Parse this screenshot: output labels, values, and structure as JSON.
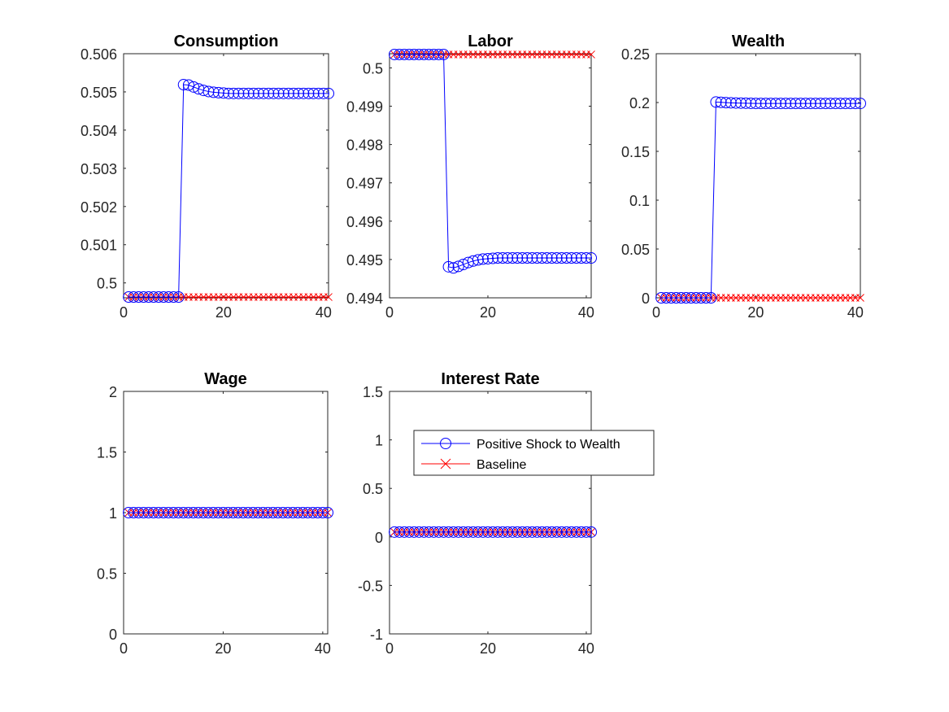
{
  "figure": {
    "series_styles": {
      "shock": {
        "color": "#0000ff",
        "marker": "circle"
      },
      "baseline": {
        "color": "#ff0000",
        "marker": "x"
      }
    },
    "legend": {
      "entries": [
        "Positive Shock to Wealth",
        "Baseline"
      ]
    }
  },
  "chart_data": [
    {
      "type": "line",
      "title": "Consumption",
      "xlim": [
        0,
        41
      ],
      "ylim": [
        0.49961,
        0.506
      ],
      "xticks": [
        0,
        20,
        40
      ],
      "xtick_labels": [
        "0",
        "20",
        "40"
      ],
      "yticks": [
        0.5,
        0.501,
        0.502,
        0.503,
        0.504,
        0.505,
        0.506
      ],
      "ytick_labels": [
        "0.5",
        "0.501",
        "0.502",
        "0.503",
        "0.504",
        "0.505",
        "0.506"
      ],
      "x": [
        1,
        2,
        3,
        4,
        5,
        6,
        7,
        8,
        9,
        10,
        11,
        12,
        13,
        14,
        15,
        16,
        17,
        18,
        19,
        20,
        21,
        22,
        23,
        24,
        25,
        26,
        27,
        28,
        29,
        30,
        31,
        32,
        33,
        34,
        35,
        36,
        37,
        38,
        39,
        40,
        41
      ],
      "series": [
        {
          "name": "Positive Shock to Wealth",
          "style": "shock",
          "values": [
            0.49963,
            0.49963,
            0.49963,
            0.49963,
            0.49963,
            0.49963,
            0.49963,
            0.49963,
            0.49963,
            0.49963,
            0.49963,
            0.50519,
            0.50518,
            0.50513,
            0.50508,
            0.50504,
            0.50501,
            0.50499,
            0.50498,
            0.50497,
            0.50496,
            0.50496,
            0.50496,
            0.50496,
            0.50496,
            0.50496,
            0.50496,
            0.50496,
            0.50496,
            0.50496,
            0.50496,
            0.50496,
            0.50496,
            0.50496,
            0.50496,
            0.50496,
            0.50496,
            0.50496,
            0.50496,
            0.50496,
            0.50496
          ]
        },
        {
          "name": "Baseline",
          "style": "baseline",
          "values": [
            0.49963,
            0.49963,
            0.49963,
            0.49963,
            0.49963,
            0.49963,
            0.49963,
            0.49963,
            0.49963,
            0.49963,
            0.49963,
            0.49963,
            0.49963,
            0.49963,
            0.49963,
            0.49963,
            0.49963,
            0.49963,
            0.49963,
            0.49963,
            0.49963,
            0.49963,
            0.49963,
            0.49963,
            0.49963,
            0.49963,
            0.49963,
            0.49963,
            0.49963,
            0.49963,
            0.49963,
            0.49963,
            0.49963,
            0.49963,
            0.49963,
            0.49963,
            0.49963,
            0.49963,
            0.49963,
            0.49963,
            0.49963
          ]
        }
      ]
    },
    {
      "type": "line",
      "title": "Labor",
      "xlim": [
        0,
        41
      ],
      "ylim": [
        0.494,
        0.50037
      ],
      "xticks": [
        0,
        20,
        40
      ],
      "xtick_labels": [
        "0",
        "20",
        "40"
      ],
      "yticks": [
        0.494,
        0.495,
        0.496,
        0.497,
        0.498,
        0.499,
        0.5
      ],
      "ytick_labels": [
        "0.494",
        "0.495",
        "0.496",
        "0.497",
        "0.498",
        "0.499",
        "0.5"
      ],
      "x": [
        1,
        2,
        3,
        4,
        5,
        6,
        7,
        8,
        9,
        10,
        11,
        12,
        13,
        14,
        15,
        16,
        17,
        18,
        19,
        20,
        21,
        22,
        23,
        24,
        25,
        26,
        27,
        28,
        29,
        30,
        31,
        32,
        33,
        34,
        35,
        36,
        37,
        38,
        39,
        40,
        41
      ],
      "series": [
        {
          "name": "Positive Shock to Wealth",
          "style": "shock",
          "values": [
            0.50035,
            0.50035,
            0.50035,
            0.50035,
            0.50035,
            0.50035,
            0.50035,
            0.50035,
            0.50035,
            0.50035,
            0.50035,
            0.49481,
            0.49478,
            0.49482,
            0.49487,
            0.49492,
            0.49496,
            0.49499,
            0.49501,
            0.49502,
            0.49503,
            0.49504,
            0.49504,
            0.49504,
            0.49504,
            0.49504,
            0.49504,
            0.49504,
            0.49504,
            0.49504,
            0.49504,
            0.49504,
            0.49504,
            0.49504,
            0.49504,
            0.49504,
            0.49504,
            0.49504,
            0.49504,
            0.49504,
            0.49504
          ]
        },
        {
          "name": "Baseline",
          "style": "baseline",
          "values": [
            0.50035,
            0.50035,
            0.50035,
            0.50035,
            0.50035,
            0.50035,
            0.50035,
            0.50035,
            0.50035,
            0.50035,
            0.50035,
            0.50035,
            0.50035,
            0.50035,
            0.50035,
            0.50035,
            0.50035,
            0.50035,
            0.50035,
            0.50035,
            0.50035,
            0.50035,
            0.50035,
            0.50035,
            0.50035,
            0.50035,
            0.50035,
            0.50035,
            0.50035,
            0.50035,
            0.50035,
            0.50035,
            0.50035,
            0.50035,
            0.50035,
            0.50035,
            0.50035,
            0.50035,
            0.50035,
            0.50035,
            0.50035
          ]
        }
      ]
    },
    {
      "type": "line",
      "title": "Wealth",
      "xlim": [
        0,
        41
      ],
      "ylim": [
        0,
        0.25
      ],
      "xticks": [
        0,
        20,
        40
      ],
      "xtick_labels": [
        "0",
        "20",
        "40"
      ],
      "yticks": [
        0,
        0.05,
        0.1,
        0.15,
        0.2,
        0.25
      ],
      "ytick_labels": [
        "0",
        "0.05",
        "0.1",
        "0.15",
        "0.2",
        "0.25"
      ],
      "x": [
        1,
        2,
        3,
        4,
        5,
        6,
        7,
        8,
        9,
        10,
        11,
        12,
        13,
        14,
        15,
        16,
        17,
        18,
        19,
        20,
        21,
        22,
        23,
        24,
        25,
        26,
        27,
        28,
        29,
        30,
        31,
        32,
        33,
        34,
        35,
        36,
        37,
        38,
        39,
        40,
        41
      ],
      "series": [
        {
          "name": "Positive Shock to Wealth",
          "style": "shock",
          "values": [
            0,
            0,
            0,
            0,
            0,
            0,
            0,
            0,
            0,
            0,
            0,
            0.2005,
            0.2002,
            0.1999,
            0.1997,
            0.1995,
            0.1994,
            0.1993,
            0.1992,
            0.1991,
            0.1991,
            0.1991,
            0.1991,
            0.1991,
            0.1991,
            0.1991,
            0.1991,
            0.1991,
            0.1991,
            0.1991,
            0.1991,
            0.1991,
            0.1991,
            0.1991,
            0.1991,
            0.1991,
            0.1991,
            0.1991,
            0.1991,
            0.1991,
            0.1991
          ]
        },
        {
          "name": "Baseline",
          "style": "baseline",
          "values": [
            0,
            0,
            0,
            0,
            0,
            0,
            0,
            0,
            0,
            0,
            0,
            0,
            0,
            0,
            0,
            0,
            0,
            0,
            0,
            0,
            0,
            0,
            0,
            0,
            0,
            0,
            0,
            0,
            0,
            0,
            0,
            0,
            0,
            0,
            0,
            0,
            0,
            0,
            0,
            0,
            0
          ]
        }
      ]
    },
    {
      "type": "line",
      "title": "Wage",
      "xlim": [
        0,
        41
      ],
      "ylim": [
        0,
        2
      ],
      "xticks": [
        0,
        20,
        40
      ],
      "xtick_labels": [
        "0",
        "20",
        "40"
      ],
      "yticks": [
        0,
        0.5,
        1,
        1.5,
        2
      ],
      "ytick_labels": [
        "0",
        "0.5",
        "1",
        "1.5",
        "2"
      ],
      "x": [
        1,
        2,
        3,
        4,
        5,
        6,
        7,
        8,
        9,
        10,
        11,
        12,
        13,
        14,
        15,
        16,
        17,
        18,
        19,
        20,
        21,
        22,
        23,
        24,
        25,
        26,
        27,
        28,
        29,
        30,
        31,
        32,
        33,
        34,
        35,
        36,
        37,
        38,
        39,
        40,
        41
      ],
      "series": [
        {
          "name": "Positive Shock to Wealth",
          "style": "shock",
          "values": [
            1,
            1,
            1,
            1,
            1,
            1,
            1,
            1,
            1,
            1,
            1,
            1,
            1,
            1,
            1,
            1,
            1,
            1,
            1,
            1,
            1,
            1,
            1,
            1,
            1,
            1,
            1,
            1,
            1,
            1,
            1,
            1,
            1,
            1,
            1,
            1,
            1,
            1,
            1,
            1,
            1
          ]
        },
        {
          "name": "Baseline",
          "style": "baseline",
          "values": [
            1,
            1,
            1,
            1,
            1,
            1,
            1,
            1,
            1,
            1,
            1,
            1,
            1,
            1,
            1,
            1,
            1,
            1,
            1,
            1,
            1,
            1,
            1,
            1,
            1,
            1,
            1,
            1,
            1,
            1,
            1,
            1,
            1,
            1,
            1,
            1,
            1,
            1,
            1,
            1,
            1
          ]
        }
      ]
    },
    {
      "type": "line",
      "title": "Interest Rate",
      "xlim": [
        0,
        41
      ],
      "ylim": [
        -1,
        1.5
      ],
      "xticks": [
        0,
        20,
        40
      ],
      "xtick_labels": [
        "0",
        "20",
        "40"
      ],
      "yticks": [
        -1,
        -0.5,
        0,
        0.5,
        1,
        1.5
      ],
      "ytick_labels": [
        "-1",
        "-0.5",
        "0",
        "0.5",
        "1",
        "1.5"
      ],
      "x": [
        1,
        2,
        3,
        4,
        5,
        6,
        7,
        8,
        9,
        10,
        11,
        12,
        13,
        14,
        15,
        16,
        17,
        18,
        19,
        20,
        21,
        22,
        23,
        24,
        25,
        26,
        27,
        28,
        29,
        30,
        31,
        32,
        33,
        34,
        35,
        36,
        37,
        38,
        39,
        40,
        41
      ],
      "series": [
        {
          "name": "Positive Shock to Wealth",
          "style": "shock",
          "values": [
            0.05,
            0.05,
            0.05,
            0.05,
            0.05,
            0.05,
            0.05,
            0.05,
            0.05,
            0.05,
            0.05,
            0.05,
            0.05,
            0.05,
            0.05,
            0.05,
            0.05,
            0.05,
            0.05,
            0.05,
            0.05,
            0.05,
            0.05,
            0.05,
            0.05,
            0.05,
            0.05,
            0.05,
            0.05,
            0.05,
            0.05,
            0.05,
            0.05,
            0.05,
            0.05,
            0.05,
            0.05,
            0.05,
            0.05,
            0.05,
            0.05
          ]
        },
        {
          "name": "Baseline",
          "style": "baseline",
          "values": [
            0.05,
            0.05,
            0.05,
            0.05,
            0.05,
            0.05,
            0.05,
            0.05,
            0.05,
            0.05,
            0.05,
            0.05,
            0.05,
            0.05,
            0.05,
            0.05,
            0.05,
            0.05,
            0.05,
            0.05,
            0.05,
            0.05,
            0.05,
            0.05,
            0.05,
            0.05,
            0.05,
            0.05,
            0.05,
            0.05,
            0.05,
            0.05,
            0.05,
            0.05,
            0.05,
            0.05,
            0.05,
            0.05,
            0.05,
            0.05,
            0.05
          ]
        }
      ]
    }
  ]
}
